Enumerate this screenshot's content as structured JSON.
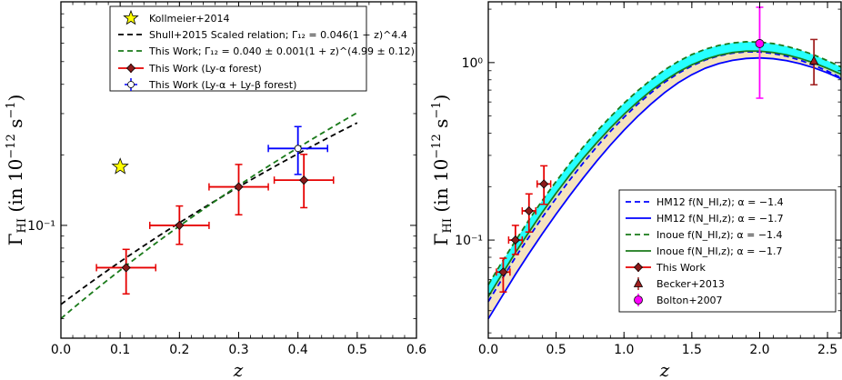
{
  "chart_data": [
    {
      "type": "line",
      "xlabel": "z",
      "ylabel": "Γ_HI (in 10^-12 s^-1)",
      "xlim": [
        0.0,
        0.6
      ],
      "ylim": [
        0.033,
        0.9
      ],
      "yscale": "log",
      "xticks": [
        "0.0",
        "0.1",
        "0.2",
        "0.3",
        "0.4",
        "0.5",
        "0.6"
      ],
      "yticks": [
        {
          "value": 0.1,
          "label": "10⁻¹"
        }
      ],
      "legend_position": "top-left",
      "legend": [
        {
          "label": "Kollmeier+2014"
        },
        {
          "label": "Shull+2015 Scaled relation; Γ₁₂ = 0.046(1 + z)^4.4"
        },
        {
          "label": "This Work;   Γ₁₂ = 0.040 ± 0.001(1 + z)^(4.99 ± 0.12)"
        },
        {
          "label": "This Work (Ly-α forest)"
        },
        {
          "label": "This Work (Ly-α + Ly-β forest)"
        }
      ],
      "series": [
        {
          "name": "Kollmeier+2014",
          "marker": "star",
          "color": "#ffff00",
          "points": [
            {
              "x": 0.1,
              "y": 0.178
            }
          ]
        },
        {
          "name": "Shull+2015 Scaled relation",
          "style": "dashed",
          "color": "#000000",
          "norm": 0.046,
          "index": 4.4,
          "xrange": [
            0.0,
            0.5
          ]
        },
        {
          "name": "This Work",
          "style": "dashed",
          "color": "#1a7a1a",
          "norm": 0.04,
          "index": 4.99,
          "xrange": [
            0.0,
            0.5
          ]
        },
        {
          "name": "This Work (Ly-α forest)",
          "marker": "diamond",
          "color": "#e60000",
          "points": [
            {
              "x": 0.11,
              "y": 0.066,
              "xerr": 0.05,
              "ylo": 0.051,
              "yhi": 0.079
            },
            {
              "x": 0.2,
              "y": 0.1,
              "xerr": 0.05,
              "ylo": 0.083,
              "yhi": 0.121
            },
            {
              "x": 0.3,
              "y": 0.146,
              "xerr": 0.05,
              "ylo": 0.111,
              "yhi": 0.182
            },
            {
              "x": 0.41,
              "y": 0.156,
              "xerr": 0.05,
              "ylo": 0.119,
              "yhi": 0.201
            }
          ]
        },
        {
          "name": "This Work (Ly-α + Ly-β forest)",
          "marker": "circle-open",
          "color": "#0000ff",
          "points": [
            {
              "x": 0.4,
              "y": 0.213,
              "xerr": 0.05,
              "ylo": 0.165,
              "yhi": 0.264
            }
          ]
        }
      ]
    },
    {
      "type": "line",
      "xlabel": "z",
      "ylabel": "Γ_HI (in 10^-12 s^-1)",
      "xlim": [
        0.0,
        2.6
      ],
      "ylim": [
        0.028,
        2.2
      ],
      "yscale": "log",
      "xticks": [
        "0.0",
        "0.5",
        "1.0",
        "1.5",
        "2.0",
        "2.5"
      ],
      "yticks": [
        {
          "value": 0.1,
          "label": "10⁻¹"
        },
        {
          "value": 1.0,
          "label": "10⁰"
        }
      ],
      "legend_position": "lower-right",
      "legend": [
        {
          "label": "HM12 f(N_HI,z);  α = −1.4"
        },
        {
          "label": "HM12 f(N_HI,z);  α = −1.7"
        },
        {
          "label": "Inoue f(N_HI,z);  α = −1.4"
        },
        {
          "label": "Inoue f(N_HI,z);  α = −1.7"
        },
        {
          "label": "This Work"
        },
        {
          "label": "Becker+2013"
        },
        {
          "label": "Bolton+2007"
        }
      ],
      "series": [
        {
          "name": "HM12 α=-1.4",
          "style": "dashed",
          "color": "#0000ff",
          "x": [
            0.0,
            0.1,
            0.2,
            0.3,
            0.4,
            0.5,
            0.6,
            0.7,
            0.8,
            0.9,
            1.0,
            1.1,
            1.2,
            1.3,
            1.4,
            1.5,
            1.6,
            1.7,
            1.8,
            1.9,
            2.0,
            2.1,
            2.2,
            2.3,
            2.4,
            2.5,
            2.6
          ],
          "y": [
            0.045,
            0.06,
            0.08,
            0.104,
            0.135,
            0.172,
            0.218,
            0.272,
            0.336,
            0.41,
            0.492,
            0.582,
            0.676,
            0.775,
            0.87,
            0.958,
            1.035,
            1.092,
            1.13,
            1.15,
            1.148,
            1.125,
            1.085,
            1.03,
            0.966,
            0.895,
            0.82
          ]
        },
        {
          "name": "HM12 α=-1.7",
          "style": "solid",
          "color": "#0000ff",
          "x": [
            0.0,
            0.1,
            0.2,
            0.3,
            0.4,
            0.5,
            0.6,
            0.7,
            0.8,
            0.9,
            1.0,
            1.1,
            1.2,
            1.3,
            1.4,
            1.5,
            1.6,
            1.7,
            1.8,
            1.9,
            2.0,
            2.1,
            2.2,
            2.3,
            2.4,
            2.5,
            2.6
          ],
          "y": [
            0.036,
            0.048,
            0.064,
            0.084,
            0.109,
            0.14,
            0.178,
            0.224,
            0.279,
            0.343,
            0.416,
            0.497,
            0.585,
            0.678,
            0.77,
            0.855,
            0.93,
            0.988,
            1.03,
            1.055,
            1.063,
            1.052,
            1.025,
            0.985,
            0.935,
            0.875,
            0.81
          ]
        },
        {
          "name": "Inoue α=-1.4",
          "style": "dashed",
          "color": "#1a7a1a",
          "x": [
            0.0,
            0.1,
            0.2,
            0.3,
            0.4,
            0.5,
            0.6,
            0.7,
            0.8,
            0.9,
            1.0,
            1.1,
            1.2,
            1.3,
            1.4,
            1.5,
            1.6,
            1.7,
            1.8,
            1.9,
            2.0,
            2.1,
            2.2,
            2.3,
            2.4,
            2.5,
            2.6
          ],
          "y": [
            0.056,
            0.075,
            0.099,
            0.13,
            0.168,
            0.214,
            0.27,
            0.335,
            0.41,
            0.495,
            0.59,
            0.693,
            0.8,
            0.91,
            1.015,
            1.11,
            1.19,
            1.25,
            1.29,
            1.31,
            1.305,
            1.28,
            1.235,
            1.175,
            1.105,
            1.025,
            0.945
          ]
        },
        {
          "name": "Inoue α=-1.7",
          "style": "solid",
          "color": "#1a7a1a",
          "x": [
            0.0,
            0.1,
            0.2,
            0.3,
            0.4,
            0.5,
            0.6,
            0.7,
            0.8,
            0.9,
            1.0,
            1.1,
            1.2,
            1.3,
            1.4,
            1.5,
            1.6,
            1.7,
            1.8,
            1.9,
            2.0,
            2.1,
            2.2,
            2.3,
            2.4,
            2.5,
            2.6
          ],
          "y": [
            0.048,
            0.064,
            0.085,
            0.111,
            0.144,
            0.184,
            0.232,
            0.289,
            0.354,
            0.428,
            0.511,
            0.6,
            0.695,
            0.792,
            0.885,
            0.972,
            1.045,
            1.1,
            1.14,
            1.16,
            1.16,
            1.14,
            1.105,
            1.055,
            0.995,
            0.928,
            0.86
          ]
        },
        {
          "name": "This Work",
          "marker": "diamond",
          "color": "#e60000",
          "points": [
            {
              "x": 0.11,
              "y": 0.066,
              "xerr": 0.05,
              "ylo": 0.051,
              "yhi": 0.079
            },
            {
              "x": 0.2,
              "y": 0.1,
              "xerr": 0.05,
              "ylo": 0.083,
              "yhi": 0.121
            },
            {
              "x": 0.3,
              "y": 0.146,
              "xerr": 0.05,
              "ylo": 0.111,
              "yhi": 0.182
            },
            {
              "x": 0.41,
              "y": 0.207,
              "xerr": 0.05,
              "ylo": 0.159,
              "yhi": 0.262
            }
          ]
        },
        {
          "name": "Becker+2013",
          "marker": "triangle",
          "color": "#a02020",
          "points": [
            {
              "x": 2.4,
              "y": 1.02,
              "xerr": 0,
              "ylo": 0.75,
              "yhi": 1.35
            }
          ]
        },
        {
          "name": "Bolton+2007",
          "marker": "circle",
          "color": "#ff00ff",
          "points": [
            {
              "x": 2.0,
              "y": 1.28,
              "xerr": 0,
              "ylo": 0.63,
              "yhi": 2.05
            }
          ]
        }
      ],
      "fill_between": [
        {
          "color": "#00ffff",
          "lower": "HM12 α=-1.4",
          "upper": "Inoue α=-1.4"
        },
        {
          "color": "#f5deb3",
          "lower": "HM12 α=-1.7",
          "upper": "Inoue α=-1.7"
        }
      ]
    }
  ]
}
